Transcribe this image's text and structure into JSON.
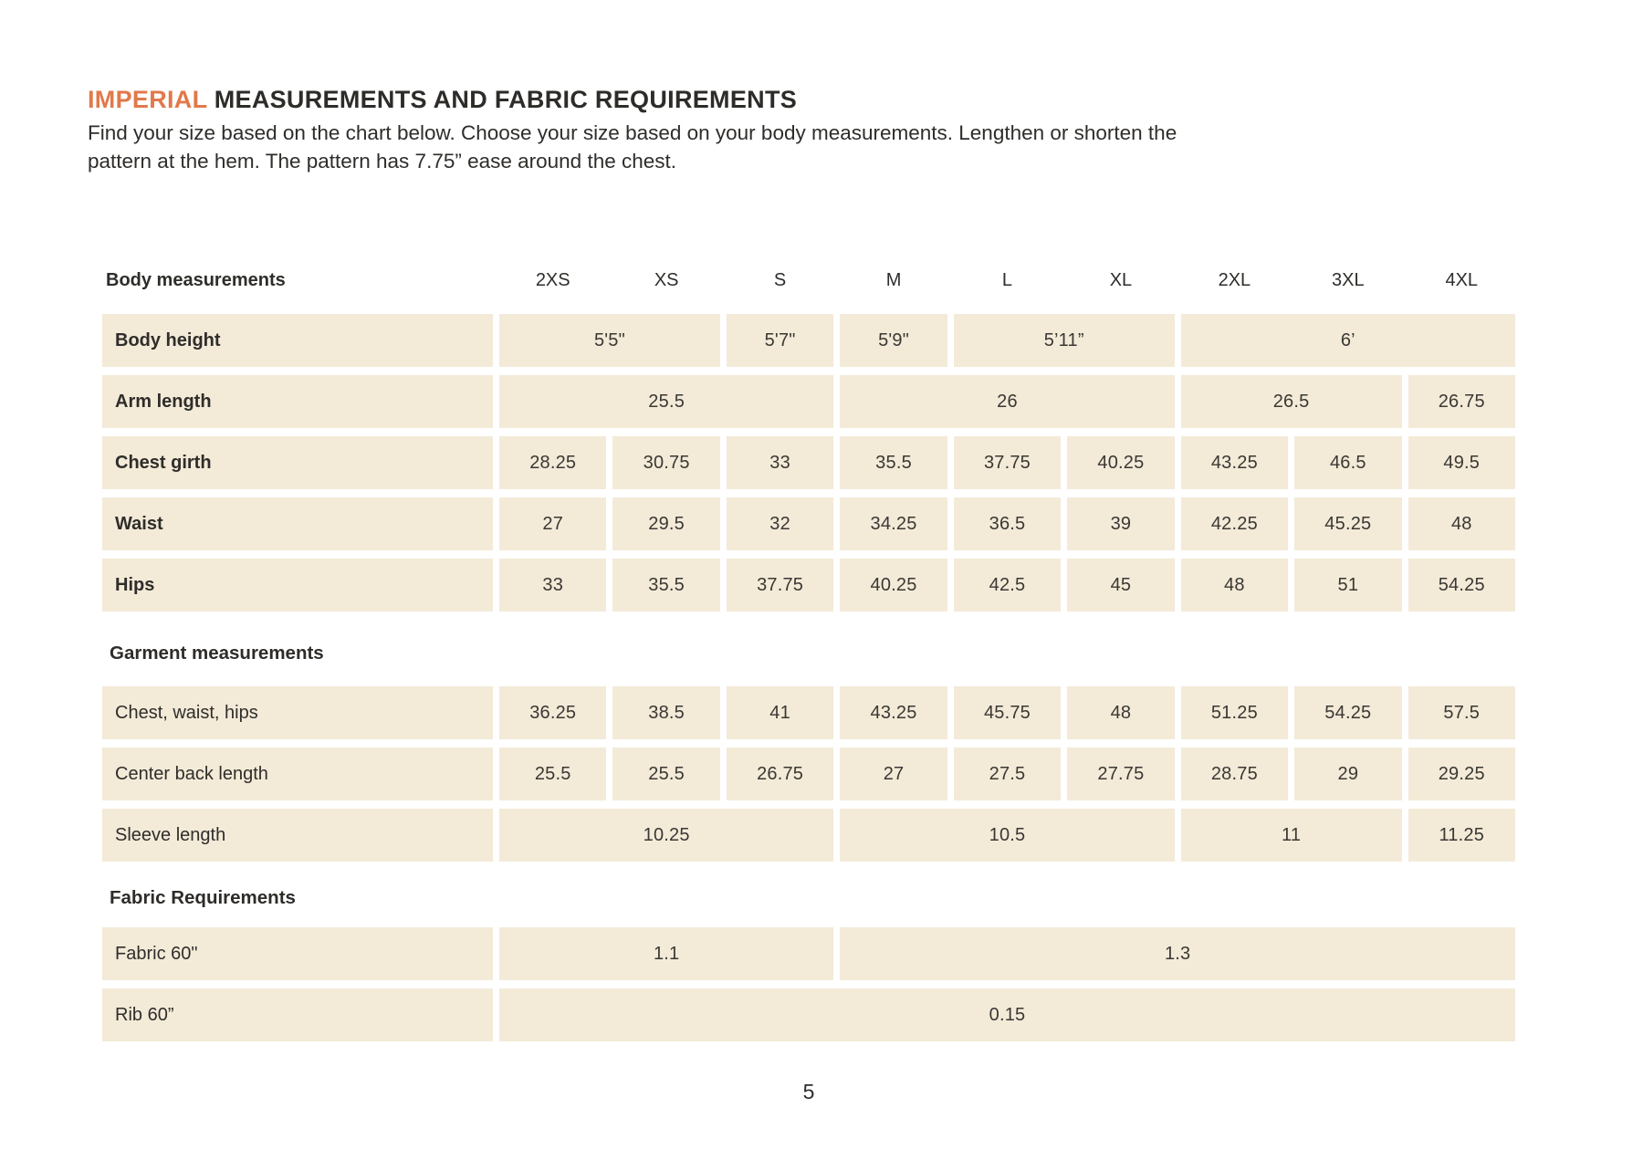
{
  "colors": {
    "accent": "#E1794B",
    "cell_background": "#F3EAD8",
    "text": "#2F2D2A"
  },
  "header": {
    "title_highlight": "IMPERIAL",
    "title_rest": " MEASUREMENTS AND FABRIC REQUIREMENTS",
    "subtitle_lines": [
      "Find your size based on the chart below. Choose your size based on your body measurements. Lengthen or shorten the",
      "pattern at the hem. The pattern has 7.75” ease around the chest."
    ]
  },
  "footer": {
    "page_number": "5"
  },
  "chart_data": {
    "type": "table",
    "title": "IMPERIAL MEASUREMENTS AND FABRIC REQUIREMENTS",
    "header_label": "Body measurements",
    "sizes": [
      "2XS",
      "XS",
      "S",
      "M",
      "L",
      "XL",
      "2XL",
      "3XL",
      "4XL"
    ],
    "sections": [
      {
        "heading": null,
        "bold_labels": true,
        "rows": [
          {
            "label": "Body height",
            "cells": [
              {
                "value": "5'5\"",
                "span": 2
              },
              {
                "value": "5'7\"",
                "span": 1
              },
              {
                "value": "5'9\"",
                "span": 1
              },
              {
                "value": "5’11”",
                "span": 2
              },
              {
                "value": "6’",
                "span": 3
              }
            ]
          },
          {
            "label": "Arm length",
            "cells": [
              {
                "value": "25.5",
                "span": 3
              },
              {
                "value": "26",
                "span": 3
              },
              {
                "value": "26.5",
                "span": 2
              },
              {
                "value": "26.75",
                "span": 1
              }
            ]
          },
          {
            "label": "Chest girth",
            "cells": [
              {
                "value": "28.25",
                "span": 1
              },
              {
                "value": "30.75",
                "span": 1
              },
              {
                "value": "33",
                "span": 1
              },
              {
                "value": "35.5",
                "span": 1
              },
              {
                "value": "37.75",
                "span": 1
              },
              {
                "value": "40.25",
                "span": 1
              },
              {
                "value": "43.25",
                "span": 1
              },
              {
                "value": "46.5",
                "span": 1
              },
              {
                "value": "49.5",
                "span": 1
              }
            ]
          },
          {
            "label": "Waist",
            "cells": [
              {
                "value": "27",
                "span": 1
              },
              {
                "value": "29.5",
                "span": 1
              },
              {
                "value": "32",
                "span": 1
              },
              {
                "value": "34.25",
                "span": 1
              },
              {
                "value": "36.5",
                "span": 1
              },
              {
                "value": "39",
                "span": 1
              },
              {
                "value": "42.25",
                "span": 1
              },
              {
                "value": "45.25",
                "span": 1
              },
              {
                "value": "48",
                "span": 1
              }
            ]
          },
          {
            "label": "Hips",
            "cells": [
              {
                "value": "33",
                "span": 1
              },
              {
                "value": "35.5",
                "span": 1
              },
              {
                "value": "37.75",
                "span": 1
              },
              {
                "value": "40.25",
                "span": 1
              },
              {
                "value": "42.5",
                "span": 1
              },
              {
                "value": "45",
                "span": 1
              },
              {
                "value": "48",
                "span": 1
              },
              {
                "value": "51",
                "span": 1
              },
              {
                "value": "54.25",
                "span": 1
              }
            ]
          }
        ]
      },
      {
        "heading": "Garment measurements",
        "bold_labels": false,
        "rows": [
          {
            "label": "Chest, waist, hips",
            "cells": [
              {
                "value": "36.25",
                "span": 1
              },
              {
                "value": "38.5",
                "span": 1
              },
              {
                "value": "41",
                "span": 1
              },
              {
                "value": "43.25",
                "span": 1
              },
              {
                "value": "45.75",
                "span": 1
              },
              {
                "value": "48",
                "span": 1
              },
              {
                "value": "51.25",
                "span": 1
              },
              {
                "value": "54.25",
                "span": 1
              },
              {
                "value": "57.5",
                "span": 1
              }
            ]
          },
          {
            "label": "Center back length",
            "cells": [
              {
                "value": "25.5",
                "span": 1
              },
              {
                "value": "25.5",
                "span": 1
              },
              {
                "value": "26.75",
                "span": 1
              },
              {
                "value": "27",
                "span": 1
              },
              {
                "value": "27.5",
                "span": 1
              },
              {
                "value": "27.75",
                "span": 1
              },
              {
                "value": "28.75",
                "span": 1
              },
              {
                "value": "29",
                "span": 1
              },
              {
                "value": "29.25",
                "span": 1
              }
            ]
          },
          {
            "label": "Sleeve length",
            "cells": [
              {
                "value": "10.25",
                "span": 3
              },
              {
                "value": "10.5",
                "span": 3
              },
              {
                "value": "11",
                "span": 2
              },
              {
                "value": "11.25",
                "span": 1
              }
            ]
          }
        ]
      },
      {
        "heading": "Fabric Requirements",
        "bold_labels": false,
        "rows": [
          {
            "label": "Fabric 60\"",
            "cells": [
              {
                "value": "1.1",
                "span": 3
              },
              {
                "value": "1.3",
                "span": 6
              }
            ]
          },
          {
            "label": "Rib 60”",
            "cells": [
              {
                "value": "0.15",
                "span": 9
              }
            ]
          }
        ]
      }
    ]
  }
}
